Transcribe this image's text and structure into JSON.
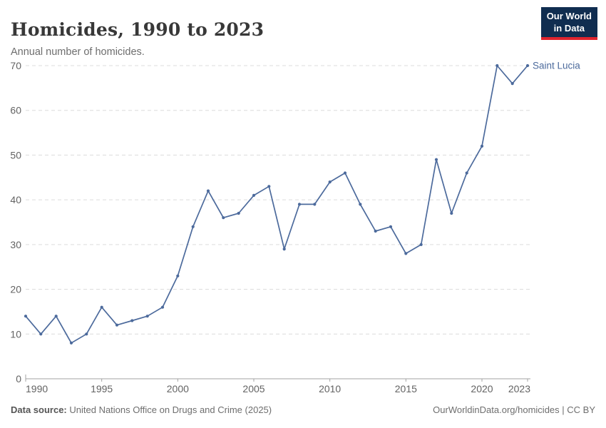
{
  "header": {
    "title": "Homicides, 1990 to 2023",
    "subtitle": "Annual number of homicides.",
    "logo_line1": "Our World",
    "logo_line2": "in Data"
  },
  "footer": {
    "source_label": "Data source:",
    "source_text": "United Nations Office on Drugs and Crime (2025)",
    "link_text": "OurWorldinData.org/homicides | CC BY"
  },
  "colors": {
    "line": "#4c6a9c",
    "series_label": "#4c6a9c",
    "grid": "#dcdcdc",
    "axis": "#a3a3a3",
    "tick_label": "#636363",
    "title": "#383838",
    "subtitle_text": "#6e6e6e",
    "logo_bg": "#102d50",
    "logo_red": "#e0242e"
  },
  "chart_data": {
    "type": "line",
    "title": "Homicides, 1990 to 2023",
    "subtitle": "Annual number of homicides.",
    "xlabel": "",
    "ylabel": "",
    "ylim": [
      0,
      70
    ],
    "yticks": [
      0,
      10,
      20,
      30,
      40,
      50,
      60,
      70
    ],
    "xticks": [
      1990,
      1995,
      2000,
      2005,
      2010,
      2015,
      2020,
      2023
    ],
    "grid": "horizontal dashed",
    "legend": "end-of-line label",
    "series": [
      {
        "name": "Saint Lucia",
        "color": "#4c6a9c",
        "x": [
          1990,
          1991,
          1992,
          1993,
          1994,
          1995,
          1996,
          1997,
          1998,
          1999,
          2000,
          2001,
          2002,
          2003,
          2004,
          2005,
          2006,
          2007,
          2008,
          2009,
          2010,
          2011,
          2012,
          2013,
          2014,
          2015,
          2016,
          2017,
          2018,
          2019,
          2020,
          2021,
          2022,
          2023
        ],
        "values": [
          14,
          10,
          14,
          8,
          10,
          16,
          12,
          13,
          14,
          16,
          23,
          34,
          42,
          36,
          37,
          41,
          43,
          29,
          39,
          39,
          44,
          46,
          39,
          33,
          34,
          28,
          30,
          49,
          37,
          46,
          52,
          70,
          66,
          70
        ]
      }
    ]
  }
}
